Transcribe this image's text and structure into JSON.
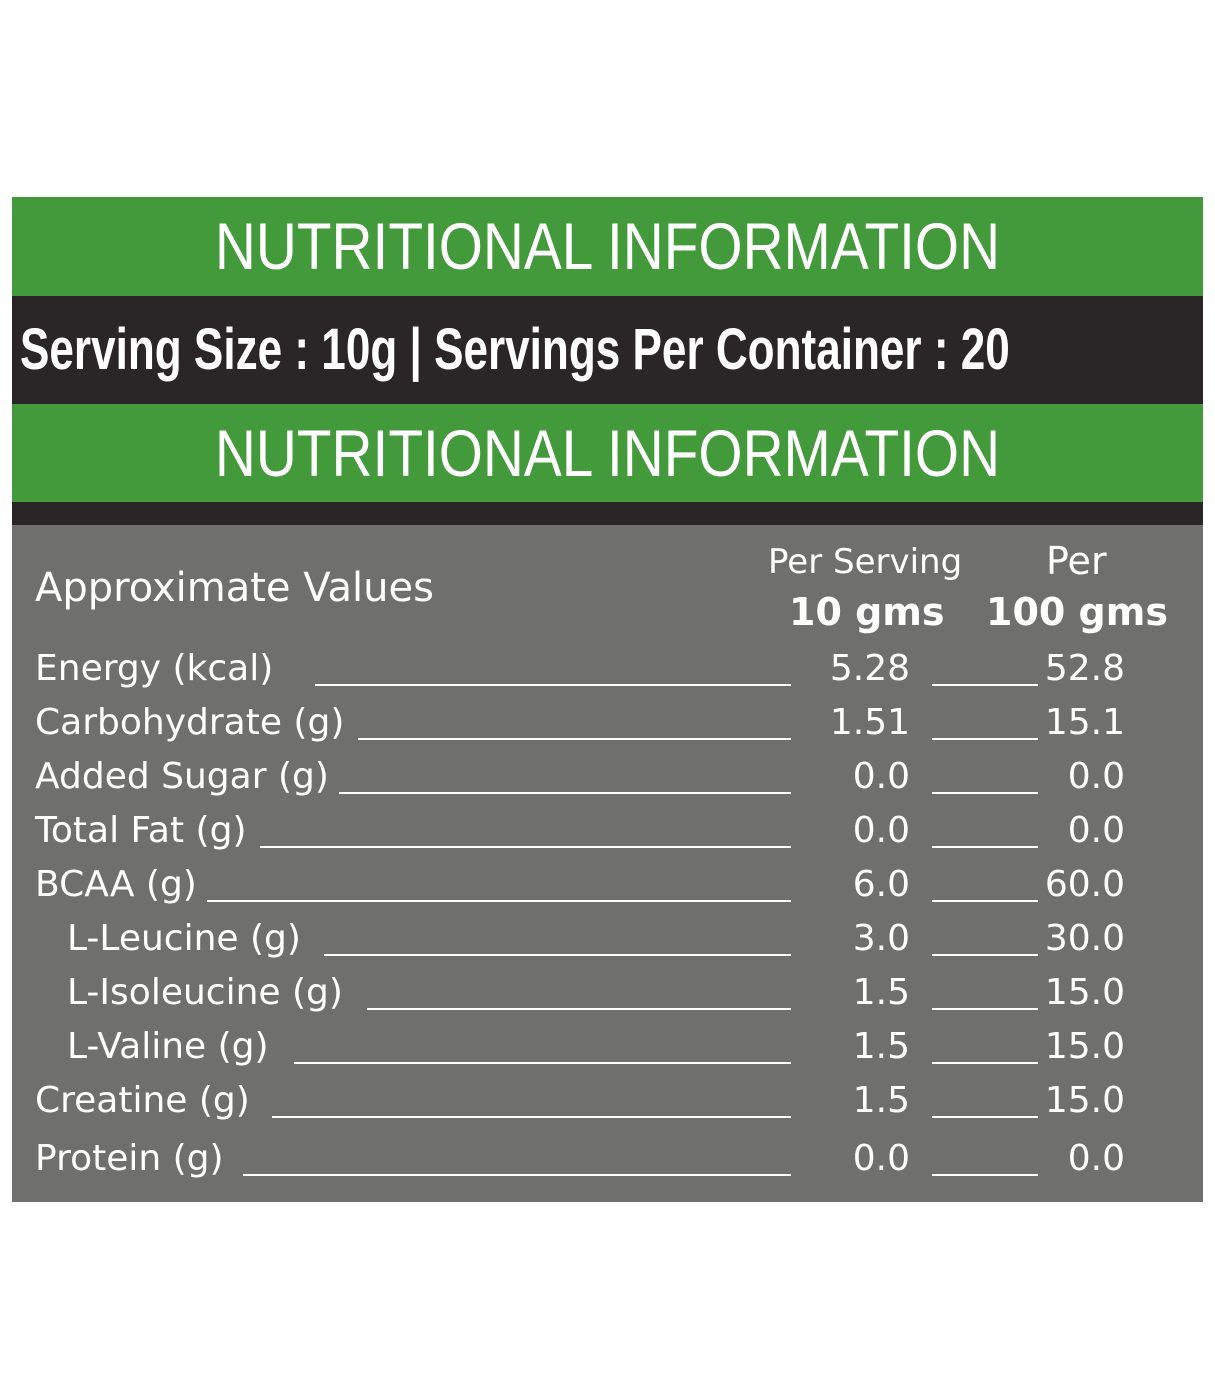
{
  "title": "NUTRITIONAL INFORMATION",
  "serving_line": "Serving Size : 10g  | Servings Per Container : 20",
  "title_repeat": "NUTRITIONAL INFORMATION",
  "table": {
    "approx_label": "Approximate Values",
    "col1_top": "Per Serving",
    "col1_bottom": "10 gms",
    "col2_top": "Per",
    "col2_bottom": "100 gms",
    "rows": [
      {
        "label": "Energy  (kcal)",
        "per_serving": "5.28",
        "per_100": "52.8"
      },
      {
        "label": "Carbohydrate (g)",
        "per_serving": "1.51",
        "per_100": "15.1"
      },
      {
        "label": "Added Sugar (g)",
        "per_serving": "0.0",
        "per_100": "0.0"
      },
      {
        "label": "Total Fat (g)",
        "per_serving": "0.0",
        "per_100": "0.0"
      },
      {
        "label": "BCAA (g)",
        "per_serving": "6.0",
        "per_100": "60.0"
      },
      {
        "label": "L-Leucine (g)",
        "per_serving": "3.0",
        "per_100": "30.0"
      },
      {
        "label": "L-Isoleucine (g)",
        "per_serving": "1.5",
        "per_100": "15.0"
      },
      {
        "label": "L-Valine (g)",
        "per_serving": "1.5",
        "per_100": "15.0"
      },
      {
        "label": "Creatine (g)",
        "per_serving": "1.5",
        "per_100": "15.0"
      },
      {
        "label": "Protein (g)",
        "per_serving": "0.0",
        "per_100": "0.0"
      }
    ]
  },
  "colors": {
    "green": "#439a3b",
    "dark": "#2a2627",
    "gray": "#6f6f6e"
  }
}
